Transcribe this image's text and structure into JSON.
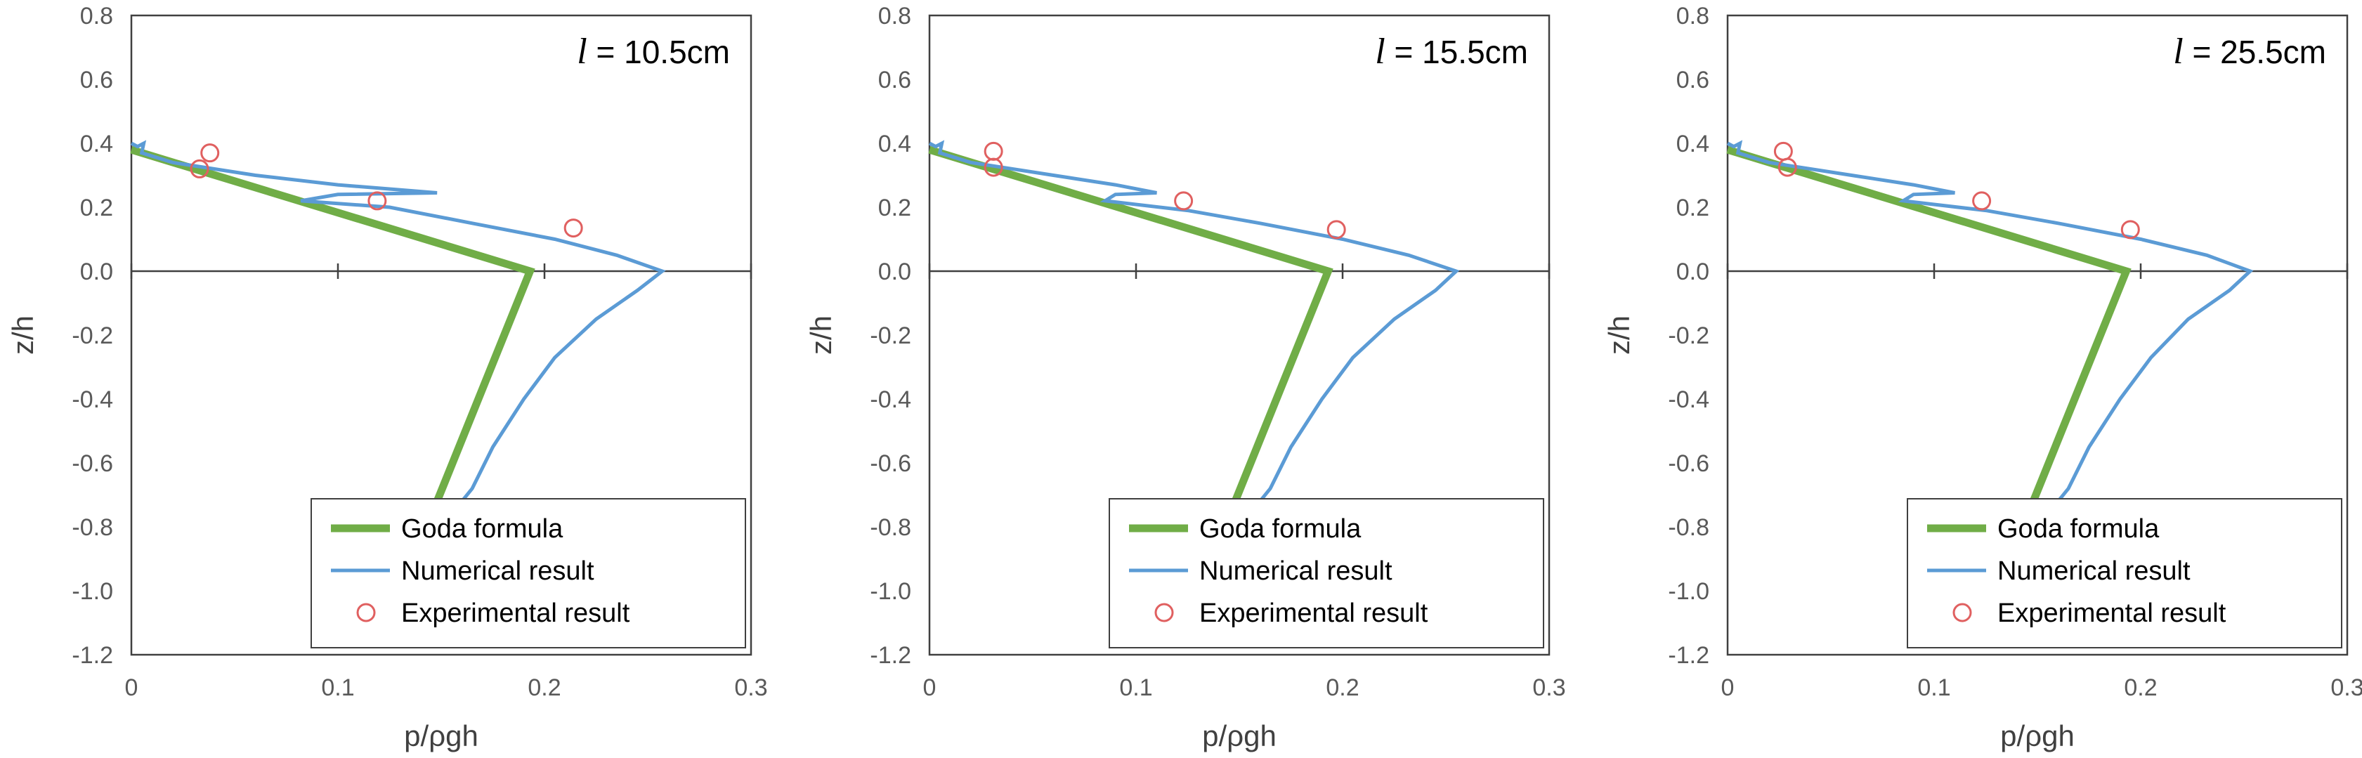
{
  "chart_data": [
    {
      "type": "line",
      "annotation_var": "l",
      "annotation_rest": " = 10.5cm",
      "xlabel": "p/ρgh",
      "ylabel": "z/h",
      "xlim": [
        0,
        0.3
      ],
      "ylim": [
        -1.2,
        0.8
      ],
      "x_ticks": [
        "0",
        "0.1",
        "0.2",
        "0.3"
      ],
      "y_ticks": [
        "0.8",
        "0.6",
        "0.4",
        "0.2",
        "0.0",
        "-0.2",
        "-0.4",
        "-0.6",
        "-0.8",
        "-1.0",
        "-1.2"
      ],
      "legend": {
        "position": "bottom-right",
        "entries": [
          "Goda formula",
          "Numerical result",
          "Experimental result"
        ]
      },
      "series": [
        {
          "name": "Goda formula",
          "style": "line",
          "color": "#70ad47",
          "points": [
            [
              0.0,
              0.38
            ],
            [
              0.193,
              0.0
            ],
            [
              0.148,
              -0.72
            ]
          ]
        },
        {
          "name": "Numerical result",
          "style": "line",
          "color": "#5b9bd5",
          "points": [
            [
              0.0,
              0.4
            ],
            [
              0.003,
              0.39
            ],
            [
              0.006,
              0.4
            ],
            [
              0.005,
              0.37
            ],
            [
              0.02,
              0.34
            ],
            [
              0.06,
              0.3
            ],
            [
              0.1,
              0.27
            ],
            [
              0.148,
              0.245
            ],
            [
              0.1,
              0.24
            ],
            [
              0.082,
              0.22
            ],
            [
              0.125,
              0.2
            ],
            [
              0.165,
              0.15
            ],
            [
              0.205,
              0.1
            ],
            [
              0.235,
              0.05
            ],
            [
              0.257,
              0.0
            ],
            [
              0.245,
              -0.06
            ],
            [
              0.225,
              -0.15
            ],
            [
              0.205,
              -0.27
            ],
            [
              0.19,
              -0.4
            ],
            [
              0.175,
              -0.55
            ],
            [
              0.165,
              -0.68
            ],
            [
              0.16,
              -0.72
            ]
          ]
        },
        {
          "name": "Experimental result",
          "style": "markers",
          "color": "#e06060",
          "points": [
            [
              0.038,
              0.37
            ],
            [
              0.033,
              0.32
            ],
            [
              0.119,
              0.22
            ],
            [
              0.214,
              0.135
            ]
          ]
        }
      ]
    },
    {
      "type": "line",
      "annotation_var": "l",
      "annotation_rest": " = 15.5cm",
      "xlabel": "p/ρgh",
      "ylabel": "z/h",
      "xlim": [
        0,
        0.3
      ],
      "ylim": [
        -1.2,
        0.8
      ],
      "x_ticks": [
        "0",
        "0.1",
        "0.2",
        "0.3"
      ],
      "y_ticks": [
        "0.8",
        "0.6",
        "0.4",
        "0.2",
        "0.0",
        "-0.2",
        "-0.4",
        "-0.6",
        "-0.8",
        "-1.0",
        "-1.2"
      ],
      "legend": {
        "position": "bottom-right",
        "entries": [
          "Goda formula",
          "Numerical result",
          "Experimental result"
        ]
      },
      "series": [
        {
          "name": "Goda formula",
          "style": "line",
          "color": "#70ad47",
          "points": [
            [
              0.0,
              0.38
            ],
            [
              0.193,
              0.0
            ],
            [
              0.148,
              -0.72
            ]
          ]
        },
        {
          "name": "Numerical result",
          "style": "line",
          "color": "#5b9bd5",
          "points": [
            [
              0.0,
              0.4
            ],
            [
              0.003,
              0.39
            ],
            [
              0.006,
              0.4
            ],
            [
              0.005,
              0.37
            ],
            [
              0.02,
              0.34
            ],
            [
              0.06,
              0.3
            ],
            [
              0.09,
              0.27
            ],
            [
              0.11,
              0.245
            ],
            [
              0.09,
              0.24
            ],
            [
              0.085,
              0.22
            ],
            [
              0.125,
              0.19
            ],
            [
              0.16,
              0.15
            ],
            [
              0.2,
              0.1
            ],
            [
              0.232,
              0.05
            ],
            [
              0.255,
              0.0
            ],
            [
              0.245,
              -0.06
            ],
            [
              0.225,
              -0.15
            ],
            [
              0.205,
              -0.27
            ],
            [
              0.19,
              -0.4
            ],
            [
              0.175,
              -0.55
            ],
            [
              0.165,
              -0.68
            ],
            [
              0.16,
              -0.72
            ]
          ]
        },
        {
          "name": "Experimental result",
          "style": "markers",
          "color": "#e06060",
          "points": [
            [
              0.031,
              0.375
            ],
            [
              0.031,
              0.325
            ],
            [
              0.123,
              0.22
            ],
            [
              0.197,
              0.13
            ]
          ]
        }
      ]
    },
    {
      "type": "line",
      "annotation_var": "l",
      "annotation_rest": " = 25.5cm",
      "xlabel": "p/ρgh",
      "ylabel": "z/h",
      "xlim": [
        0,
        0.3
      ],
      "ylim": [
        -1.2,
        0.8
      ],
      "x_ticks": [
        "0",
        "0.1",
        "0.2",
        "0.3"
      ],
      "y_ticks": [
        "0.8",
        "0.6",
        "0.4",
        "0.2",
        "0.0",
        "-0.2",
        "-0.4",
        "-0.6",
        "-0.8",
        "-1.0",
        "-1.2"
      ],
      "legend": {
        "position": "bottom-right",
        "entries": [
          "Goda formula",
          "Numerical result",
          "Experimental result"
        ]
      },
      "series": [
        {
          "name": "Goda formula",
          "style": "line",
          "color": "#70ad47",
          "points": [
            [
              0.0,
              0.38
            ],
            [
              0.193,
              0.0
            ],
            [
              0.148,
              -0.72
            ]
          ]
        },
        {
          "name": "Numerical result",
          "style": "line",
          "color": "#5b9bd5",
          "points": [
            [
              0.0,
              0.4
            ],
            [
              0.003,
              0.39
            ],
            [
              0.006,
              0.4
            ],
            [
              0.005,
              0.37
            ],
            [
              0.02,
              0.34
            ],
            [
              0.06,
              0.3
            ],
            [
              0.09,
              0.27
            ],
            [
              0.11,
              0.245
            ],
            [
              0.09,
              0.24
            ],
            [
              0.085,
              0.22
            ],
            [
              0.125,
              0.19
            ],
            [
              0.16,
              0.15
            ],
            [
              0.2,
              0.1
            ],
            [
              0.232,
              0.05
            ],
            [
              0.253,
              0.0
            ],
            [
              0.243,
              -0.06
            ],
            [
              0.223,
              -0.15
            ],
            [
              0.205,
              -0.27
            ],
            [
              0.19,
              -0.4
            ],
            [
              0.175,
              -0.55
            ],
            [
              0.165,
              -0.68
            ],
            [
              0.16,
              -0.72
            ]
          ]
        },
        {
          "name": "Experimental result",
          "style": "markers",
          "color": "#e06060",
          "points": [
            [
              0.027,
              0.375
            ],
            [
              0.029,
              0.325
            ],
            [
              0.123,
              0.22
            ],
            [
              0.195,
              0.13
            ]
          ]
        }
      ]
    }
  ]
}
